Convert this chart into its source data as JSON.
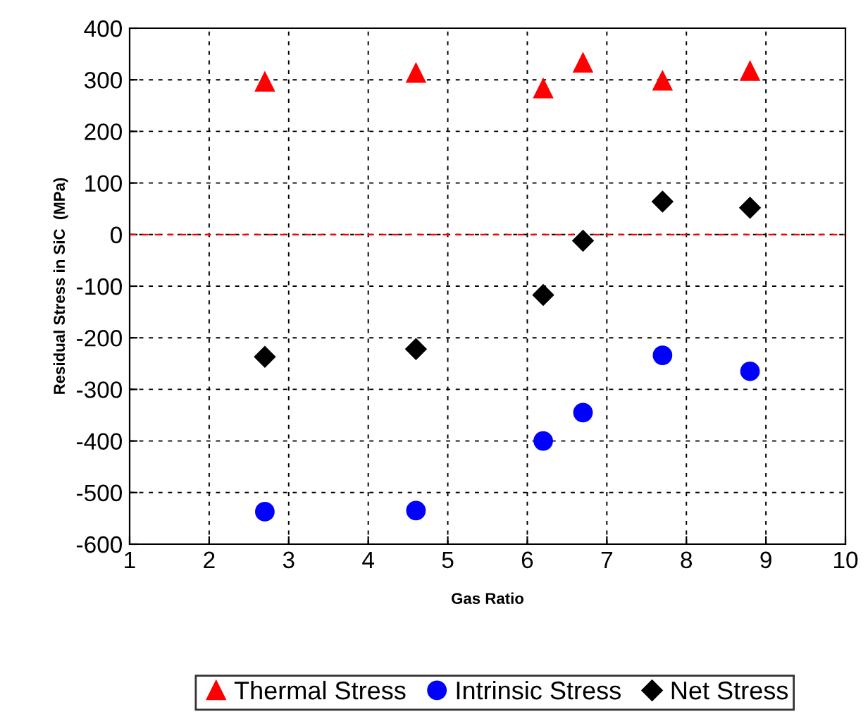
{
  "chart_data": {
    "type": "scatter",
    "xlabel": "Gas Ratio",
    "ylabel": "Residual Stress in SiC  (MPa)",
    "xlim": [
      1,
      10
    ],
    "xticks": [
      1,
      2,
      3,
      4,
      5,
      6,
      7,
      8,
      9,
      10
    ],
    "ylim": [
      -600,
      400
    ],
    "yticks": [
      -600,
      -500,
      -400,
      -300,
      -200,
      -100,
      0,
      100,
      200,
      300,
      400
    ],
    "grid": true,
    "legend": "bottom",
    "ref_lines": [
      {
        "axis": "y",
        "value": 0,
        "color": "#ff0000",
        "line_style": "dashed"
      }
    ],
    "series": [
      {
        "name": "Thermal Stress",
        "color": "#ff0000",
        "marker": "triangle",
        "x": [
          2.7,
          4.6,
          6.2,
          6.7,
          7.7,
          8.8
        ],
        "values": [
          296,
          313,
          283,
          333,
          298,
          317
        ]
      },
      {
        "name": "Intrinsic Stress",
        "color": "#0000ff",
        "marker": "circle",
        "x": [
          2.7,
          4.6,
          6.2,
          6.7,
          7.7,
          8.8
        ],
        "values": [
          -537,
          -535,
          -400,
          -345,
          -234,
          -265
        ]
      },
      {
        "name": "Net Stress",
        "color": "#000000",
        "marker": "diamond",
        "x": [
          2.7,
          4.6,
          6.2,
          6.7,
          7.7,
          8.8
        ],
        "values": [
          -237,
          -222,
          -117,
          -12,
          64,
          52
        ]
      }
    ]
  }
}
